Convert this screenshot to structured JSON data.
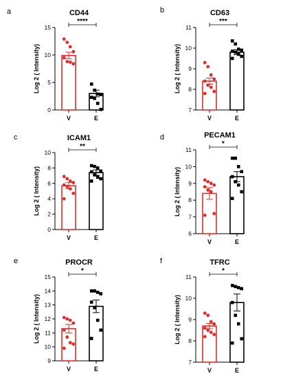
{
  "colors": {
    "vehicle": "#e32b2b",
    "exposure": "#000000"
  },
  "chart_data": [
    {
      "panel": "a",
      "type": "bar",
      "title": "CD44",
      "ylabel": "Log 2 ( Intensity)",
      "categories": [
        "V",
        "E"
      ],
      "ylim": [
        0,
        15
      ],
      "yticks": [
        0,
        5,
        10,
        15
      ],
      "values": [
        9.9,
        3.0
      ],
      "sem": [
        0.6,
        0.6
      ],
      "points": [
        [
          12.9,
          12.3,
          11.5,
          10.6,
          9.5,
          8.8,
          8.7,
          8.4
        ],
        [
          4.7,
          3.6,
          2.9,
          2.8,
          2.3,
          2.1,
          1.2,
          0.1
        ]
      ],
      "significance": "****"
    },
    {
      "panel": "b",
      "type": "bar",
      "title": "CD63",
      "ylabel": "Log 2 ( Intensity)",
      "categories": [
        "V",
        "E"
      ],
      "ylim": [
        7,
        11
      ],
      "yticks": [
        7,
        8,
        9,
        10,
        11
      ],
      "values": [
        8.4,
        9.8
      ],
      "sem": [
        0.15,
        0.12
      ],
      "points": [
        [
          9.3,
          9.1,
          8.7,
          8.5,
          8.4,
          8.2,
          8.1,
          7.9,
          7.8
        ],
        [
          10.35,
          10.2,
          9.95,
          9.9,
          9.85,
          9.8,
          9.7,
          9.6,
          9.5
        ]
      ],
      "significance": "***"
    },
    {
      "panel": "c",
      "type": "bar",
      "title": "ICAM1",
      "ylabel": "Log 2 ( Intensity)",
      "categories": [
        "V",
        "E"
      ],
      "ylim": [
        0,
        10
      ],
      "yticks": [
        0,
        2,
        4,
        6,
        8,
        10
      ],
      "values": [
        5.7,
        7.4
      ],
      "sem": [
        0.4,
        0.35
      ],
      "points": [
        [
          6.9,
          6.6,
          6.3,
          6.1,
          5.8,
          5.6,
          5.3,
          4.7,
          4.0
        ],
        [
          8.3,
          8.2,
          8.0,
          7.6,
          7.5,
          7.1,
          6.8,
          6.6,
          6.3
        ]
      ],
      "significance": "**"
    },
    {
      "panel": "d",
      "type": "bar",
      "title": "PECAM1",
      "ylabel": "Log 2 ( Intensity)",
      "categories": [
        "V",
        "E"
      ],
      "ylim": [
        6,
        11
      ],
      "yticks": [
        6,
        7,
        8,
        9,
        10,
        11
      ],
      "values": [
        8.4,
        9.4
      ],
      "sem": [
        0.35,
        0.3
      ],
      "points": [
        [
          9.2,
          9.1,
          9.0,
          8.9,
          8.8,
          8.6,
          8.5,
          7.2,
          7.1
        ],
        [
          10.5,
          10.5,
          10.0,
          9.7,
          9.4,
          9.1,
          8.9,
          8.5,
          8.1
        ]
      ],
      "significance": "*"
    },
    {
      "panel": "e",
      "type": "bar",
      "title": "PROCR",
      "ylabel": "Log 2 ( Intensity)",
      "categories": [
        "V",
        "E"
      ],
      "ylim": [
        9,
        15
      ],
      "yticks": [
        9,
        10,
        11,
        12,
        13,
        14,
        15
      ],
      "values": [
        11.3,
        12.9
      ],
      "sem": [
        0.3,
        0.45
      ],
      "points": [
        [
          12.1,
          12.0,
          11.9,
          11.7,
          11.2,
          10.7,
          10.3,
          10.2,
          9.9
        ],
        [
          14.0,
          14.0,
          13.9,
          13.8,
          13.2,
          12.8,
          11.9,
          11.2,
          10.6
        ]
      ],
      "significance": "*"
    },
    {
      "panel": "f",
      "type": "bar",
      "title": "TFRC",
      "ylabel": "Log 2 ( Intensity)",
      "categories": [
        "V",
        "E"
      ],
      "ylim": [
        7,
        11
      ],
      "yticks": [
        7,
        8,
        9,
        10,
        11
      ],
      "values": [
        8.7,
        9.8
      ],
      "sem": [
        0.12,
        0.4
      ],
      "points": [
        [
          9.3,
          9.2,
          8.9,
          8.8,
          8.6,
          8.5,
          8.4,
          8.3,
          8.2
        ],
        [
          10.6,
          10.55,
          10.5,
          10.45,
          9.8,
          9.2,
          8.8,
          8.1,
          7.9
        ]
      ],
      "significance": "*"
    }
  ]
}
